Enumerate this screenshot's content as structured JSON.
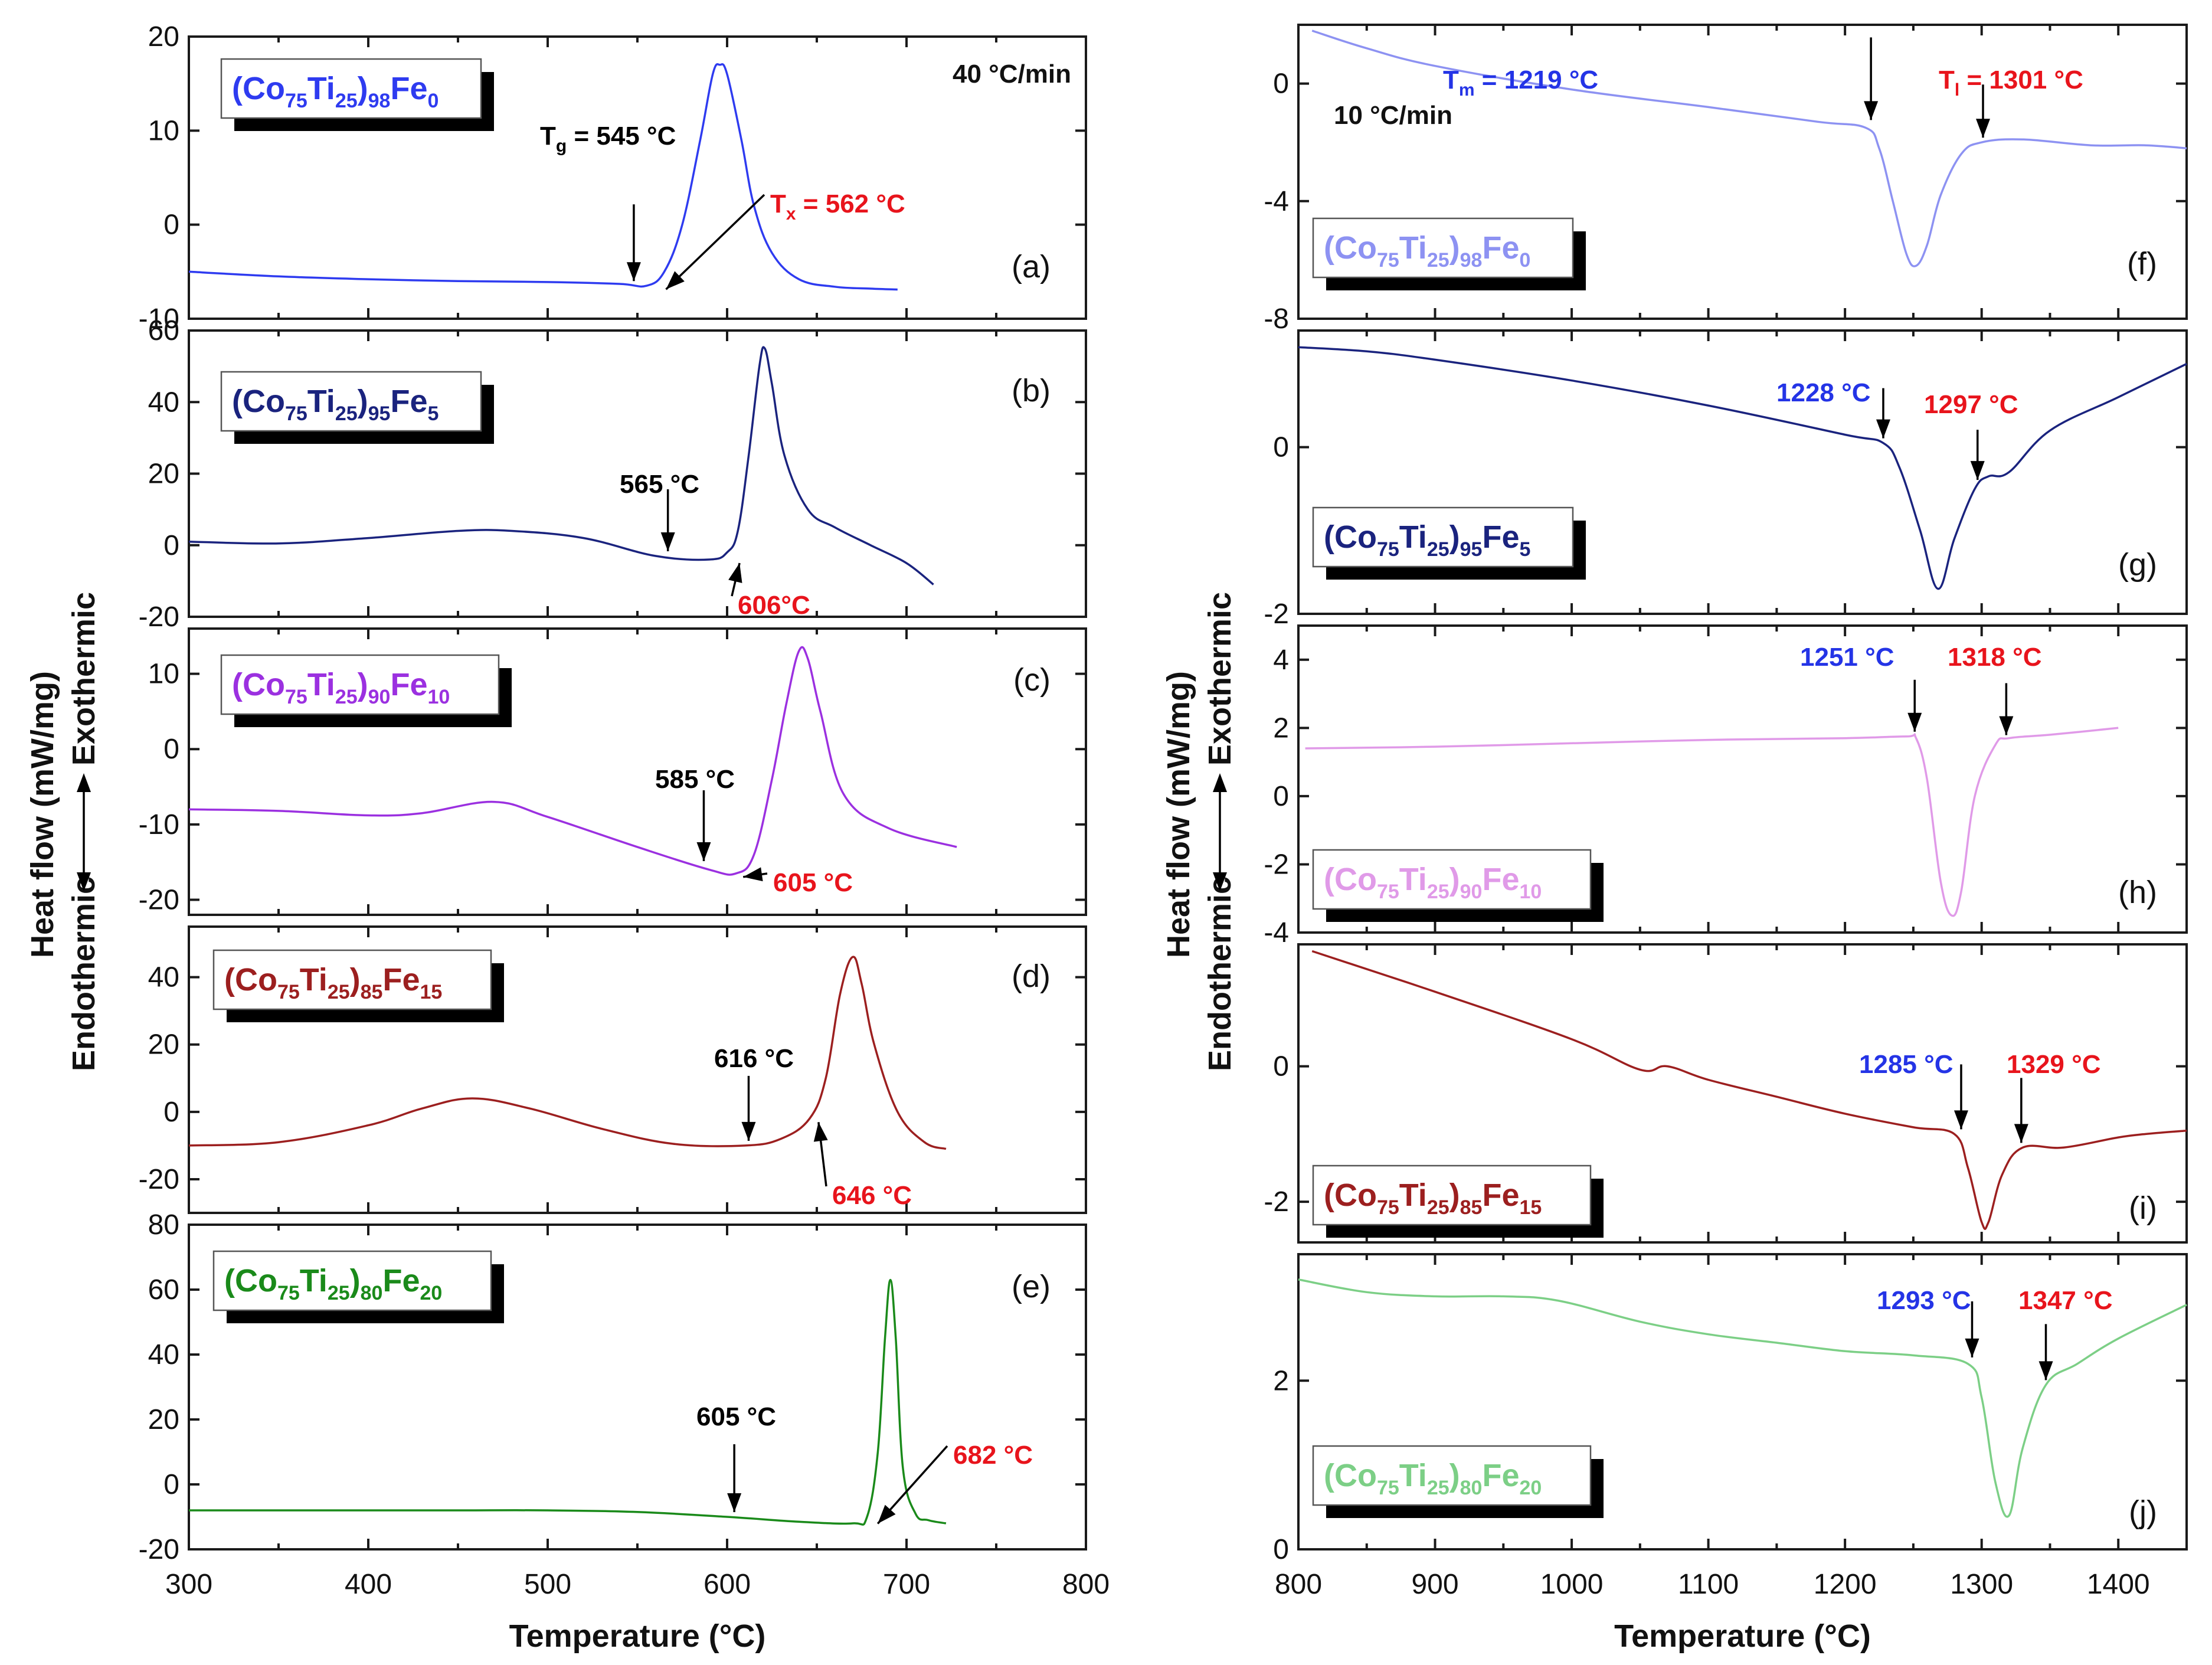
{
  "figure": {
    "left": {
      "x_axis": {
        "label": "Temperature (°C)",
        "lim": [
          300,
          800
        ],
        "ticks": [
          300,
          400,
          500,
          600,
          700,
          800
        ]
      },
      "y_axis": {
        "label": "Heat flow (mW/mg)",
        "exo_label": "Exothermic",
        "endo_label": "Endothermic",
        "exo_color": "#e8141c",
        "endo_color": "#2434e6"
      }
    },
    "right": {
      "x_axis": {
        "label": "Temperature (°C)",
        "lim": [
          800,
          1450
        ],
        "ticks": [
          800,
          900,
          1000,
          1100,
          1200,
          1300,
          1400
        ]
      },
      "y_axis": {
        "label": "Heat flow (mW/mg)",
        "exo_label": "Exothermic",
        "endo_label": "Endothermic",
        "exo_color": "#e8141c",
        "endo_color": "#2434e6"
      }
    }
  },
  "chart_data": [
    {
      "type": "line",
      "panel": "(a)",
      "side": "left",
      "title": "(Co75Ti25)98Fe0",
      "label": {
        "base": "(Co",
        "s1": "75",
        "mid": "Ti",
        "s2": "25",
        "close": ")",
        "s3": "98",
        "el": "Fe",
        "s4": "0"
      },
      "color": "#2e3bf0",
      "xlabel": "Temperature (°C)",
      "ylabel": "Heat flow (mW/mg)",
      "xlim": [
        300,
        800
      ],
      "ylim": [
        -10,
        20
      ],
      "yticks": [
        -10,
        0,
        10,
        20
      ],
      "rate": "40 °C/min",
      "x": [
        300,
        350,
        400,
        450,
        500,
        540,
        555,
        565,
        575,
        585,
        592,
        596,
        600,
        608,
        615,
        625,
        640,
        660,
        680,
        695
      ],
      "y": [
        -5,
        -5.5,
        -5.8,
        -6,
        -6.1,
        -6.3,
        -6.5,
        -5,
        0,
        9,
        16,
        17,
        16,
        9,
        2,
        -3,
        -5.8,
        -6.6,
        -6.8,
        -6.9
      ],
      "annotations": [
        {
          "kind": "Tg",
          "text": "T",
          "sub": "g",
          "rest": " = 545 °C",
          "x": 548,
          "y": -6.5,
          "color": "#000000"
        },
        {
          "kind": "Tx",
          "text": "T",
          "sub": "x",
          "rest": " = 562 °C",
          "x": 562,
          "y": -6.5,
          "color": "#e8141c"
        }
      ]
    },
    {
      "type": "line",
      "panel": "(b)",
      "side": "left",
      "title": "(Co75Ti25)95Fe5",
      "label": {
        "base": "(Co",
        "s1": "75",
        "mid": "Ti",
        "s2": "25",
        "close": ")",
        "s3": "95",
        "el": "Fe",
        "s4": "5"
      },
      "color": "#1a237e",
      "xlabel": "Temperature (°C)",
      "ylabel": "Heat flow (mW/mg)",
      "xlim": [
        300,
        800
      ],
      "ylim": [
        -20,
        60
      ],
      "yticks": [
        -20,
        0,
        20,
        40,
        60
      ],
      "x": [
        300,
        350,
        400,
        450,
        480,
        520,
        560,
        590,
        600,
        606,
        612,
        618,
        621,
        625,
        632,
        645,
        660,
        680,
        700,
        715
      ],
      "y": [
        1,
        0.5,
        2,
        4,
        4,
        2,
        -3,
        -4,
        -2,
        4,
        25,
        50,
        55,
        45,
        25,
        10,
        5,
        0,
        -5,
        -11
      ],
      "annotations": [
        {
          "kind": "Tg",
          "text": "",
          "sub": "",
          "rest": "565 °C",
          "x": 567,
          "y": -3,
          "color": "#000000"
        },
        {
          "kind": "Tx",
          "text": "",
          "sub": "",
          "rest": "606°C",
          "x": 603,
          "y": -4,
          "color": "#e8141c"
        }
      ]
    },
    {
      "type": "line",
      "panel": "(c)",
      "side": "left",
      "title": "(Co75Ti25)90Fe10",
      "label": {
        "base": "(Co",
        "s1": "75",
        "mid": "Ti",
        "s2": "25",
        "close": ")",
        "s3": "90",
        "el": "Fe",
        "s4": "10"
      },
      "color": "#9b30e0",
      "xlabel": "Temperature (°C)",
      "ylabel": "Heat flow (mW/mg)",
      "xlim": [
        300,
        800
      ],
      "ylim": [
        -22,
        16
      ],
      "yticks": [
        -20,
        -10,
        0,
        10
      ],
      "x": [
        300,
        350,
        400,
        430,
        470,
        500,
        550,
        590,
        605,
        615,
        625,
        633,
        640,
        645,
        652,
        665,
        690,
        728
      ],
      "y": [
        -8,
        -8.2,
        -8.8,
        -8.5,
        -7,
        -9,
        -13,
        -16,
        -16.5,
        -14,
        -4,
        6,
        13,
        12,
        5,
        -6,
        -10.5,
        -13
      ],
      "annotations": [
        {
          "kind": "Tg",
          "text": "",
          "sub": "",
          "rest": "585 °C",
          "x": 587,
          "y": -15.5,
          "color": "#000000"
        },
        {
          "kind": "Tx",
          "text": "",
          "sub": "",
          "rest": "605 °C",
          "x": 605,
          "y": -16.5,
          "color": "#e8141c"
        }
      ]
    },
    {
      "type": "line",
      "panel": "(d)",
      "side": "left",
      "title": "(Co75Ti25)85Fe15",
      "label": {
        "base": "(Co",
        "s1": "75",
        "mid": "Ti",
        "s2": "25",
        "close": ")",
        "s3": "85",
        "el": "Fe",
        "s4": "15"
      },
      "color": "#9c1f1f",
      "xlabel": "Temperature (°C)",
      "ylabel": "Heat flow (mW/mg)",
      "xlim": [
        300,
        800
      ],
      "ylim": [
        -30,
        55
      ],
      "yticks": [
        -20,
        0,
        20,
        40
      ],
      "x": [
        300,
        350,
        400,
        430,
        458,
        490,
        530,
        570,
        610,
        630,
        646,
        655,
        663,
        670,
        675,
        682,
        695,
        710,
        722
      ],
      "y": [
        -10,
        -9,
        -4,
        1,
        4,
        1,
        -5,
        -9.5,
        -10,
        -8,
        -2,
        10,
        35,
        46,
        38,
        20,
        0,
        -9,
        -11
      ],
      "annotations": [
        {
          "kind": "Tg",
          "text": "",
          "sub": "",
          "rest": "616 °C",
          "x": 612,
          "y": -10,
          "color": "#000000"
        },
        {
          "kind": "Tx",
          "text": "",
          "sub": "",
          "rest": "646 °C",
          "x": 647,
          "y": -2,
          "color": "#e8141c"
        }
      ]
    },
    {
      "type": "line",
      "panel": "(e)",
      "side": "left",
      "title": "(Co75Ti25)80Fe20",
      "label": {
        "base": "(Co",
        "s1": "75",
        "mid": "Ti",
        "s2": "25",
        "close": ")",
        "s3": "80",
        "el": "Fe",
        "s4": "20"
      },
      "color": "#1a8a1a",
      "xlabel": "Temperature (°C)",
      "ylabel": "Heat flow (mW/mg)",
      "xlim": [
        300,
        800
      ],
      "ylim": [
        -20,
        80
      ],
      "yticks": [
        -20,
        0,
        20,
        40,
        60,
        80
      ],
      "x": [
        300,
        350,
        400,
        450,
        500,
        550,
        600,
        640,
        670,
        678,
        684,
        688,
        691,
        694,
        698,
        705,
        712,
        722
      ],
      "y": [
        -8,
        -8,
        -8,
        -8,
        -8,
        -8.5,
        -10,
        -11.5,
        -12,
        -10,
        10,
        45,
        63,
        45,
        5,
        -9,
        -11,
        -12
      ],
      "annotations": [
        {
          "kind": "Tg",
          "text": "",
          "sub": "",
          "rest": "605 °C",
          "x": 604,
          "y": -10,
          "color": "#000000"
        },
        {
          "kind": "Tx",
          "text": "",
          "sub": "",
          "rest": "682 °C",
          "x": 680,
          "y": -11,
          "color": "#e8141c"
        }
      ]
    },
    {
      "type": "line",
      "panel": "(f)",
      "side": "right",
      "title": "(Co75Ti25)98Fe0",
      "label": {
        "base": "(Co",
        "s1": "75",
        "mid": "Ti",
        "s2": "25",
        "close": ")",
        "s3": "98",
        "el": "Fe",
        "s4": "0"
      },
      "color": "#8d92f2",
      "xlabel": "Temperature (°C)",
      "ylabel": "Heat flow (mW/mg)",
      "xlim": [
        800,
        1450
      ],
      "ylim": [
        -8,
        2
      ],
      "yticks": [
        -8,
        -4,
        0
      ],
      "rate": "10 °C/min",
      "x": [
        810,
        850,
        900,
        1000,
        1100,
        1180,
        1215,
        1225,
        1235,
        1245,
        1252,
        1260,
        1270,
        1285,
        1300,
        1330,
        1380,
        1420,
        1450
      ],
      "y": [
        1.8,
        1.2,
        0.6,
        -0.2,
        -0.8,
        -1.3,
        -1.5,
        -2.2,
        -4,
        -5.8,
        -6.2,
        -5.5,
        -3.8,
        -2.4,
        -2,
        -1.9,
        -2.1,
        -2.1,
        -2.2
      ],
      "annotations": [
        {
          "kind": "Tm",
          "text": "T",
          "sub": "m",
          "rest": " = 1219 °C",
          "x": 1219,
          "y": -1.4,
          "color": "#2434e6"
        },
        {
          "kind": "Tl",
          "text": "T",
          "sub": "l",
          "rest": " = 1301 °C",
          "x": 1301,
          "y": -2,
          "color": "#e8141c"
        }
      ]
    },
    {
      "type": "line",
      "panel": "(g)",
      "side": "right",
      "title": "(Co75Ti25)95Fe5",
      "label": {
        "base": "(Co",
        "s1": "75",
        "mid": "Ti",
        "s2": "25",
        "close": ")",
        "s3": "95",
        "el": "Fe",
        "s4": "5"
      },
      "color": "#1a237e",
      "xlabel": "Temperature (°C)",
      "ylabel": "Heat flow (mW/mg)",
      "xlim": [
        800,
        1450
      ],
      "ylim": [
        -2,
        1.4
      ],
      "yticks": [
        -2,
        0
      ],
      "x": [
        800,
        850,
        900,
        1000,
        1100,
        1200,
        1228,
        1240,
        1255,
        1268,
        1280,
        1295,
        1305,
        1320,
        1350,
        1400,
        1450
      ],
      "y": [
        1.2,
        1.15,
        1.05,
        0.8,
        0.5,
        0.15,
        0.05,
        -0.25,
        -1,
        -1.7,
        -1.1,
        -0.5,
        -0.35,
        -0.3,
        0.2,
        0.6,
        1.0
      ],
      "annotations": [
        {
          "kind": "Tm",
          "text": "",
          "sub": "",
          "rest": "1228 °C",
          "x": 1228,
          "y": 0.05,
          "color": "#2434e6"
        },
        {
          "kind": "Tl",
          "text": "",
          "sub": "",
          "rest": "1297 °C",
          "x": 1297,
          "y": -0.45,
          "color": "#e8141c"
        }
      ]
    },
    {
      "type": "line",
      "panel": "(h)",
      "side": "right",
      "title": "(Co75Ti25)90Fe10",
      "label": {
        "base": "(Co",
        "s1": "75",
        "mid": "Ti",
        "s2": "25",
        "close": ")",
        "s3": "90",
        "el": "Fe",
        "s4": "10"
      },
      "color": "#e09ae8",
      "xlabel": "Temperature (°C)",
      "ylabel": "Heat flow (mW/mg)",
      "xlim": [
        800,
        1450
      ],
      "ylim": [
        -4,
        5
      ],
      "yticks": [
        -4,
        -2,
        0,
        2,
        4
      ],
      "x": [
        805,
        900,
        1000,
        1100,
        1200,
        1245,
        1252,
        1260,
        1270,
        1278,
        1285,
        1295,
        1310,
        1320,
        1350,
        1400
      ],
      "y": [
        1.4,
        1.45,
        1.55,
        1.65,
        1.7,
        1.75,
        1.7,
        0.5,
        -2.5,
        -3.5,
        -2.8,
        0,
        1.5,
        1.7,
        1.8,
        2.0
      ],
      "annotations": [
        {
          "kind": "Tm",
          "text": "",
          "sub": "",
          "rest": "1251 °C",
          "x": 1251,
          "y": 1.75,
          "color": "#2434e6"
        },
        {
          "kind": "Tl",
          "text": "",
          "sub": "",
          "rest": "1318 °C",
          "x": 1318,
          "y": 1.65,
          "color": "#e8141c"
        }
      ]
    },
    {
      "type": "line",
      "panel": "(i)",
      "side": "right",
      "title": "(Co75Ti25)85Fe15",
      "label": {
        "base": "(Co",
        "s1": "75",
        "mid": "Ti",
        "s2": "25",
        "close": ")",
        "s3": "85",
        "el": "Fe",
        "s4": "15"
      },
      "color": "#9c1f1f",
      "xlabel": "Temperature (°C)",
      "ylabel": "Heat flow (mW/mg)",
      "xlim": [
        800,
        1450
      ],
      "ylim": [
        -2.6,
        1.8
      ],
      "yticks": [
        -2,
        0
      ],
      "x": [
        810,
        900,
        1000,
        1050,
        1070,
        1100,
        1150,
        1200,
        1250,
        1280,
        1290,
        1300,
        1305,
        1315,
        1330,
        1360,
        1400,
        1420,
        1450
      ],
      "y": [
        1.7,
        1.1,
        0.4,
        -0.05,
        0.0,
        -0.2,
        -0.45,
        -0.7,
        -0.9,
        -1.0,
        -1.5,
        -2.3,
        -2.3,
        -1.6,
        -1.2,
        -1.2,
        -1.05,
        -1.0,
        -0.95
      ],
      "annotations": [
        {
          "kind": "Tm",
          "text": "",
          "sub": "",
          "rest": "1285 °C",
          "x": 1285,
          "y": -1.0,
          "color": "#2434e6"
        },
        {
          "kind": "Tl",
          "text": "",
          "sub": "",
          "rest": "1329 °C",
          "x": 1329,
          "y": -1.2,
          "color": "#e8141c"
        }
      ]
    },
    {
      "type": "line",
      "panel": "(j)",
      "side": "right",
      "title": "(Co75Ti25)80Fe20",
      "label": {
        "base": "(Co",
        "s1": "75",
        "mid": "Ti",
        "s2": "25",
        "close": ")",
        "s3": "80",
        "el": "Fe",
        "s4": "20"
      },
      "color": "#7ccf86",
      "xlabel": "Temperature (°C)",
      "ylabel": "Heat flow (mW/mg)",
      "xlim": [
        800,
        1450
      ],
      "ylim": [
        0,
        3.5
      ],
      "yticks": [
        0,
        2
      ],
      "x": [
        800,
        850,
        900,
        950,
        990,
        1050,
        1100,
        1150,
        1200,
        1250,
        1290,
        1300,
        1310,
        1320,
        1330,
        1347,
        1370,
        1400,
        1450
      ],
      "y": [
        3.2,
        3.05,
        3.0,
        3.0,
        2.95,
        2.7,
        2.55,
        2.45,
        2.35,
        2.3,
        2.2,
        1.8,
        0.8,
        0.4,
        1.2,
        1.95,
        2.2,
        2.5,
        2.9
      ],
      "annotations": [
        {
          "kind": "Tm",
          "text": "",
          "sub": "",
          "rest": "1293 °C",
          "x": 1293,
          "y": 2.22,
          "color": "#2434e6"
        },
        {
          "kind": "Tl",
          "text": "",
          "sub": "",
          "rest": "1347 °C",
          "x": 1347,
          "y": 1.95,
          "color": "#e8141c"
        }
      ]
    }
  ]
}
